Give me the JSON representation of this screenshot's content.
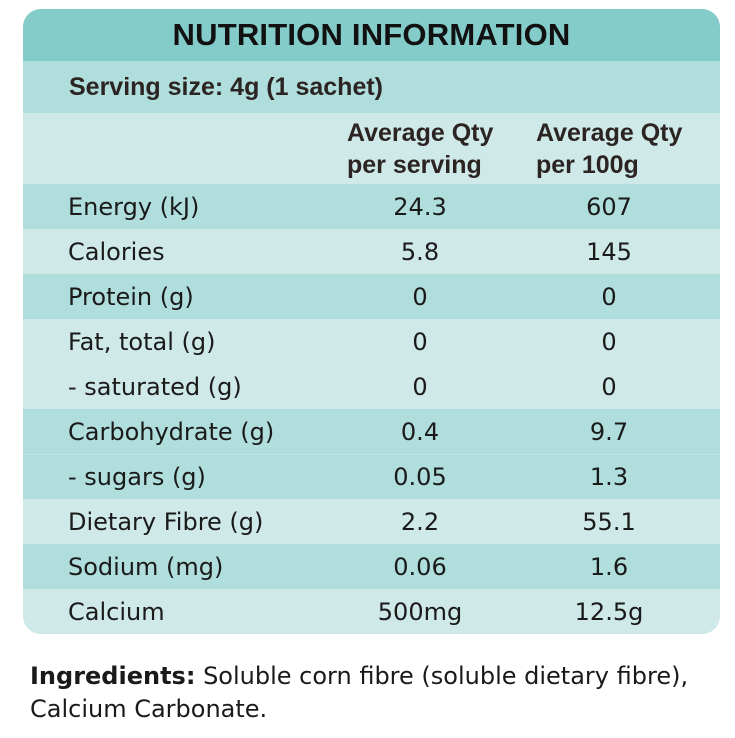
{
  "panel": {
    "title": "NUTRITION INFORMATION",
    "serving_size": "Serving size: 4g (1 sachet)",
    "columns": {
      "per_serving": [
        "Average Qty",
        "per serving"
      ],
      "per_100g": [
        "Average Qty",
        "per 100g"
      ]
    },
    "rows": [
      {
        "label": "Energy (kJ)",
        "per_serving": "24.3",
        "per_100g": "607",
        "shade": "dark"
      },
      {
        "label": "Calories",
        "per_serving": "5.8",
        "per_100g": "145",
        "shade": "light"
      },
      {
        "label": "Protein (g)",
        "per_serving": "0",
        "per_100g": "0",
        "shade": "dark"
      },
      {
        "label": "Fat, total (g)",
        "per_serving": "0",
        "per_100g": "0",
        "shade": "light"
      },
      {
        "label": "- saturated (g)",
        "per_serving": "0",
        "per_100g": "0",
        "shade": "light"
      },
      {
        "label": "Carbohydrate (g)",
        "per_serving": "0.4",
        "per_100g": "9.7",
        "shade": "dark"
      },
      {
        "label": "- sugars (g)",
        "per_serving": "0.05",
        "per_100g": "1.3",
        "shade": "dark"
      },
      {
        "label": "Dietary Fibre (g)",
        "per_serving": "2.2",
        "per_100g": "55.1",
        "shade": "light"
      },
      {
        "label": "Sodium (mg)",
        "per_serving": "0.06",
        "per_100g": "1.6",
        "shade": "dark"
      },
      {
        "label": "Calcium",
        "per_serving": "500mg",
        "per_100g": "12.5g",
        "shade": "light"
      }
    ]
  },
  "ingredients": {
    "label": "Ingredients:",
    "text": " Soluble corn fibre (soluble dietary fibre), Calcium Carbonate."
  },
  "colors": {
    "title_bg": "#84ccca",
    "row_dark": "#b0dedc",
    "row_light": "#cfe9e8",
    "text": "#231f20"
  }
}
